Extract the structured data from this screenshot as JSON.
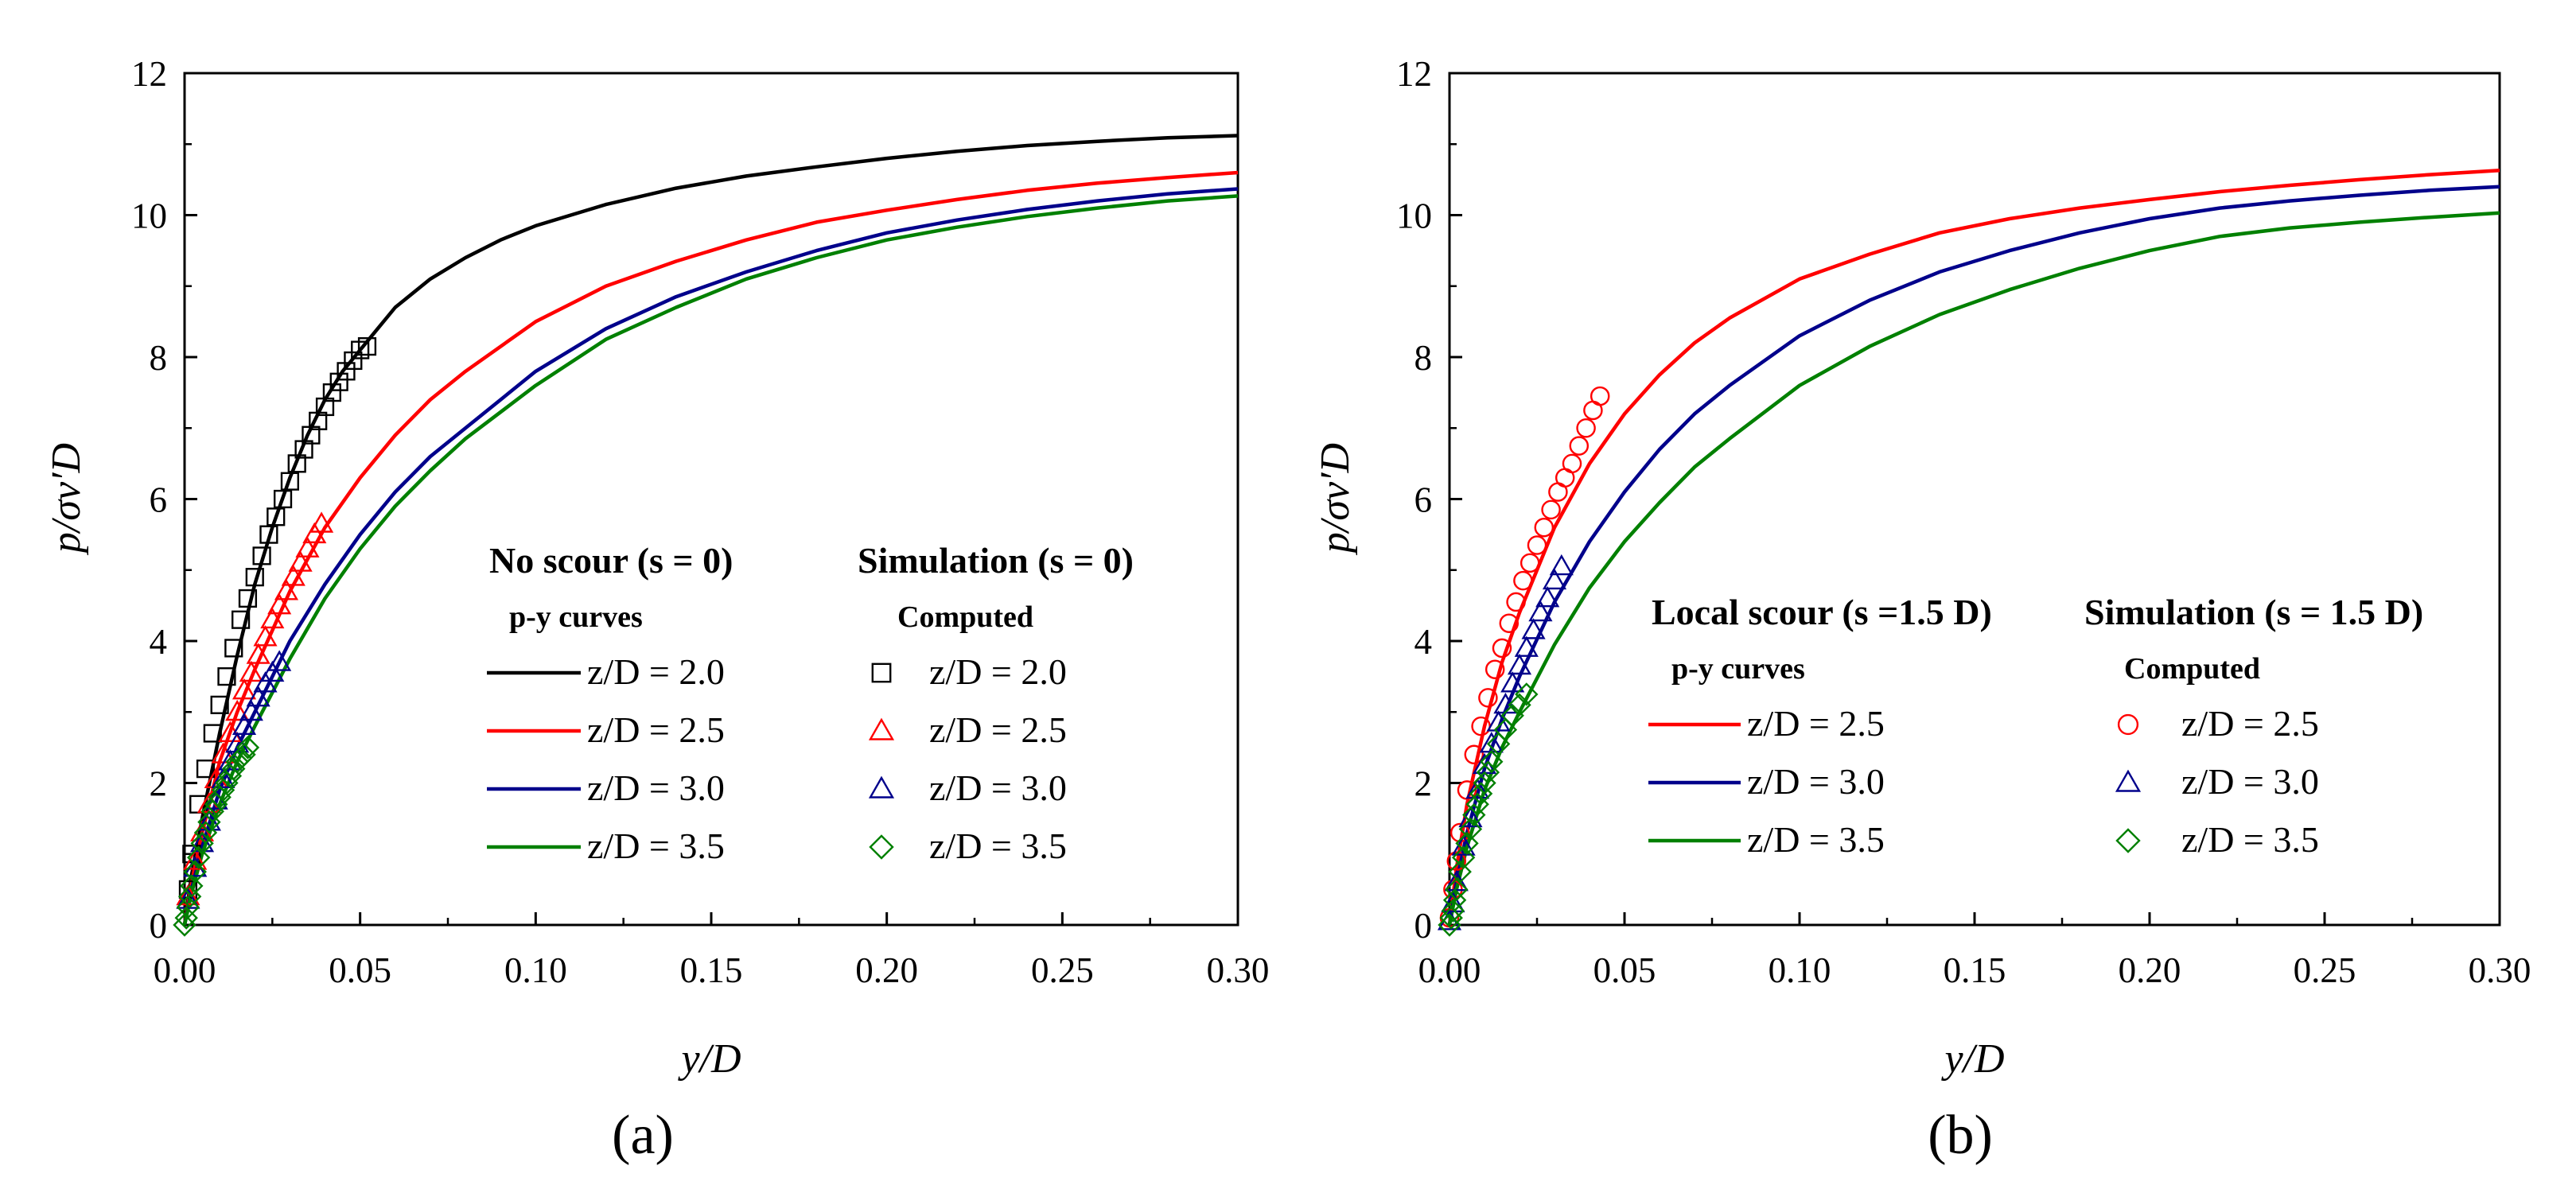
{
  "chart_data": [
    {
      "panel_label": "(a)",
      "type": "line",
      "xlabel": "y/D",
      "ylabel": "p/σv′D",
      "xlim": [
        0,
        0.3
      ],
      "ylim": [
        0,
        12
      ],
      "xticks": [
        "0.00",
        "0.05",
        "0.10",
        "0.15",
        "0.20",
        "0.25",
        "0.30"
      ],
      "yticks": [
        "0",
        "2",
        "4",
        "6",
        "8",
        "10",
        "12"
      ],
      "legend_left_title": "No scour (s = 0)",
      "legend_left_sub": "p-y curves",
      "legend_right_title": "Simulation (s = 0)",
      "legend_right_sub": "Computed",
      "curves": [
        {
          "name": "z/D = 2.0",
          "color": "#000000",
          "x": [
            0,
            0.002,
            0.005,
            0.01,
            0.015,
            0.02,
            0.025,
            0.03,
            0.035,
            0.04,
            0.045,
            0.05,
            0.055,
            0.06,
            0.07,
            0.08,
            0.09,
            0.1,
            0.12,
            0.14,
            0.16,
            0.18,
            0.2,
            0.22,
            0.24,
            0.26,
            0.28,
            0.3
          ],
          "y": [
            0,
            0.7,
            1.5,
            2.7,
            3.8,
            4.8,
            5.6,
            6.3,
            6.9,
            7.4,
            7.8,
            8.1,
            8.4,
            8.7,
            9.1,
            9.4,
            9.65,
            9.85,
            10.15,
            10.38,
            10.55,
            10.68,
            10.8,
            10.9,
            10.98,
            11.04,
            11.09,
            11.12
          ]
        },
        {
          "name": "z/D = 2.5",
          "color": "#ff0000",
          "x": [
            0,
            0.002,
            0.005,
            0.01,
            0.015,
            0.02,
            0.03,
            0.04,
            0.05,
            0.06,
            0.07,
            0.08,
            0.1,
            0.12,
            0.14,
            0.16,
            0.18,
            0.2,
            0.22,
            0.24,
            0.26,
            0.28,
            0.3
          ],
          "y": [
            0,
            0.6,
            1.3,
            2.3,
            3.0,
            3.6,
            4.7,
            5.6,
            6.3,
            6.9,
            7.4,
            7.8,
            8.5,
            9.0,
            9.35,
            9.65,
            9.9,
            10.07,
            10.22,
            10.35,
            10.45,
            10.53,
            10.6
          ]
        },
        {
          "name": "z/D = 3.0",
          "color": "#00008b",
          "x": [
            0,
            0.002,
            0.005,
            0.01,
            0.015,
            0.02,
            0.03,
            0.04,
            0.05,
            0.06,
            0.07,
            0.08,
            0.1,
            0.12,
            0.14,
            0.16,
            0.18,
            0.2,
            0.22,
            0.24,
            0.26,
            0.28,
            0.3
          ],
          "y": [
            0,
            0.5,
            1.1,
            1.9,
            2.5,
            3.0,
            4.0,
            4.8,
            5.5,
            6.1,
            6.6,
            7.0,
            7.8,
            8.4,
            8.85,
            9.2,
            9.5,
            9.75,
            9.93,
            10.08,
            10.2,
            10.3,
            10.37
          ]
        },
        {
          "name": "z/D = 3.5",
          "color": "#008000",
          "x": [
            0,
            0.002,
            0.005,
            0.01,
            0.015,
            0.02,
            0.03,
            0.04,
            0.05,
            0.06,
            0.07,
            0.08,
            0.1,
            0.12,
            0.14,
            0.16,
            0.18,
            0.2,
            0.22,
            0.24,
            0.26,
            0.28,
            0.3
          ],
          "y": [
            0,
            0.45,
            1.0,
            1.7,
            2.3,
            2.8,
            3.75,
            4.6,
            5.3,
            5.9,
            6.4,
            6.85,
            7.6,
            8.25,
            8.7,
            9.1,
            9.4,
            9.65,
            9.83,
            9.98,
            10.1,
            10.2,
            10.27
          ]
        }
      ],
      "markers": [
        {
          "name": "z/D = 2.0",
          "shape": "square",
          "color": "#000000",
          "x": [
            0.001,
            0.002,
            0.004,
            0.006,
            0.008,
            0.01,
            0.012,
            0.014,
            0.016,
            0.018,
            0.02,
            0.022,
            0.024,
            0.026,
            0.028,
            0.03,
            0.032,
            0.034,
            0.036,
            0.038,
            0.04,
            0.042,
            0.044,
            0.046,
            0.048,
            0.05,
            0.052
          ],
          "y": [
            0.5,
            1.0,
            1.7,
            2.2,
            2.7,
            3.1,
            3.5,
            3.9,
            4.3,
            4.6,
            4.9,
            5.2,
            5.5,
            5.75,
            6.0,
            6.25,
            6.5,
            6.7,
            6.9,
            7.1,
            7.3,
            7.5,
            7.65,
            7.8,
            7.95,
            8.1,
            8.15
          ]
        },
        {
          "name": "z/D = 2.5",
          "shape": "triangle",
          "color": "#ff0000",
          "x": [
            0.001,
            0.003,
            0.005,
            0.007,
            0.009,
            0.011,
            0.013,
            0.015,
            0.017,
            0.019,
            0.021,
            0.023,
            0.025,
            0.027,
            0.029,
            0.031,
            0.033,
            0.035,
            0.037,
            0.039
          ],
          "y": [
            0.4,
            0.9,
            1.3,
            1.7,
            2.05,
            2.4,
            2.7,
            3.0,
            3.3,
            3.55,
            3.8,
            4.05,
            4.3,
            4.5,
            4.7,
            4.9,
            5.1,
            5.3,
            5.5,
            5.65
          ]
        },
        {
          "name": "z/D = 3.0",
          "shape": "triangle",
          "color": "#00008b",
          "x": [
            0.001,
            0.003,
            0.005,
            0.007,
            0.009,
            0.011,
            0.013,
            0.015,
            0.017,
            0.019,
            0.021,
            0.023,
            0.025,
            0.027
          ],
          "y": [
            0.35,
            0.8,
            1.15,
            1.45,
            1.75,
            2.05,
            2.3,
            2.55,
            2.8,
            3.0,
            3.2,
            3.4,
            3.55,
            3.7
          ]
        },
        {
          "name": "z/D = 3.5",
          "shape": "diamond",
          "color": "#008000",
          "x": [
            0,
            0.0005,
            0.001,
            0.0015,
            0.002,
            0.003,
            0.004,
            0.005,
            0.006,
            0.007,
            0.008,
            0.009,
            0.01,
            0.011,
            0.012,
            0.013,
            0.014,
            0.015,
            0.016,
            0.017,
            0.018
          ],
          "y": [
            0.0,
            0.1,
            0.25,
            0.4,
            0.55,
            0.75,
            0.95,
            1.15,
            1.3,
            1.45,
            1.6,
            1.7,
            1.8,
            1.9,
            2.0,
            2.1,
            2.2,
            2.3,
            2.35,
            2.4,
            2.5
          ]
        }
      ]
    },
    {
      "panel_label": "(b)",
      "type": "line",
      "xlabel": "y/D",
      "ylabel": "p/σv′D",
      "xlim": [
        0,
        0.3
      ],
      "ylim": [
        0,
        12
      ],
      "xticks": [
        "0.00",
        "0.05",
        "0.10",
        "0.15",
        "0.20",
        "0.25",
        "0.30"
      ],
      "yticks": [
        "0",
        "2",
        "4",
        "6",
        "8",
        "10",
        "12"
      ],
      "legend_left_title": "Local scour (s =1.5 D)",
      "legend_left_sub": "p-y curves",
      "legend_right_title": "Simulation (s = 1.5 D)",
      "legend_right_sub": "Computed",
      "curves": [
        {
          "name": "z/D = 2.5",
          "color": "#ff0000",
          "x": [
            0,
            0.002,
            0.005,
            0.01,
            0.015,
            0.02,
            0.03,
            0.04,
            0.05,
            0.06,
            0.07,
            0.08,
            0.1,
            0.12,
            0.14,
            0.16,
            0.18,
            0.2,
            0.22,
            0.24,
            0.26,
            0.28,
            0.3
          ],
          "y": [
            0,
            0.8,
            1.7,
            2.8,
            3.7,
            4.4,
            5.6,
            6.5,
            7.2,
            7.75,
            8.2,
            8.55,
            9.1,
            9.45,
            9.75,
            9.95,
            10.1,
            10.22,
            10.33,
            10.42,
            10.5,
            10.57,
            10.63
          ]
        },
        {
          "name": "z/D = 3.0",
          "color": "#00008b",
          "x": [
            0,
            0.002,
            0.005,
            0.01,
            0.015,
            0.02,
            0.03,
            0.04,
            0.05,
            0.06,
            0.07,
            0.08,
            0.1,
            0.12,
            0.14,
            0.16,
            0.18,
            0.2,
            0.22,
            0.24,
            0.26,
            0.28,
            0.3
          ],
          "y": [
            0,
            0.6,
            1.3,
            2.2,
            2.9,
            3.5,
            4.55,
            5.4,
            6.1,
            6.7,
            7.2,
            7.6,
            8.3,
            8.8,
            9.2,
            9.5,
            9.75,
            9.95,
            10.1,
            10.2,
            10.28,
            10.35,
            10.4
          ]
        },
        {
          "name": "z/D = 3.5",
          "color": "#008000",
          "x": [
            0,
            0.002,
            0.005,
            0.01,
            0.015,
            0.02,
            0.03,
            0.04,
            0.05,
            0.06,
            0.07,
            0.08,
            0.1,
            0.12,
            0.14,
            0.16,
            0.18,
            0.2,
            0.22,
            0.24,
            0.26,
            0.28,
            0.3
          ],
          "y": [
            0,
            0.5,
            1.1,
            1.9,
            2.5,
            3.0,
            3.95,
            4.75,
            5.4,
            5.95,
            6.45,
            6.85,
            7.6,
            8.15,
            8.6,
            8.95,
            9.25,
            9.5,
            9.7,
            9.82,
            9.9,
            9.97,
            10.03
          ]
        }
      ],
      "markers": [
        {
          "name": "z/D = 2.5",
          "shape": "circle",
          "color": "#ff0000",
          "x": [
            0,
            0.001,
            0.002,
            0.003,
            0.005,
            0.007,
            0.009,
            0.011,
            0.013,
            0.015,
            0.017,
            0.019,
            0.021,
            0.023,
            0.025,
            0.027,
            0.029,
            0.031,
            0.033,
            0.035,
            0.037,
            0.039,
            0.041,
            0.043
          ],
          "y": [
            0.1,
            0.5,
            0.9,
            1.3,
            1.9,
            2.4,
            2.8,
            3.2,
            3.6,
            3.9,
            4.25,
            4.55,
            4.85,
            5.1,
            5.35,
            5.6,
            5.85,
            6.1,
            6.3,
            6.5,
            6.75,
            7.0,
            7.25,
            7.45
          ]
        },
        {
          "name": "z/D = 3.0",
          "shape": "triangle",
          "color": "#00008b",
          "x": [
            0,
            0.001,
            0.002,
            0.004,
            0.006,
            0.008,
            0.01,
            0.012,
            0.014,
            0.016,
            0.018,
            0.02,
            0.022,
            0.024,
            0.026,
            0.028,
            0.03,
            0.032
          ],
          "y": [
            0.05,
            0.3,
            0.6,
            1.1,
            1.5,
            1.9,
            2.25,
            2.55,
            2.85,
            3.1,
            3.4,
            3.65,
            3.9,
            4.15,
            4.4,
            4.6,
            4.85,
            5.05
          ]
        },
        {
          "name": "z/D = 3.5",
          "shape": "diamond",
          "color": "#008000",
          "x": [
            0,
            0.0005,
            0.001,
            0.0015,
            0.002,
            0.003,
            0.004,
            0.005,
            0.006,
            0.007,
            0.008,
            0.009,
            0.01,
            0.011,
            0.012,
            0.014,
            0.016,
            0.018,
            0.02,
            0.022
          ],
          "y": [
            0.0,
            0.1,
            0.2,
            0.35,
            0.5,
            0.75,
            0.95,
            1.15,
            1.35,
            1.55,
            1.7,
            1.85,
            2.0,
            2.15,
            2.3,
            2.55,
            2.75,
            2.95,
            3.1,
            3.25
          ]
        }
      ]
    }
  ]
}
